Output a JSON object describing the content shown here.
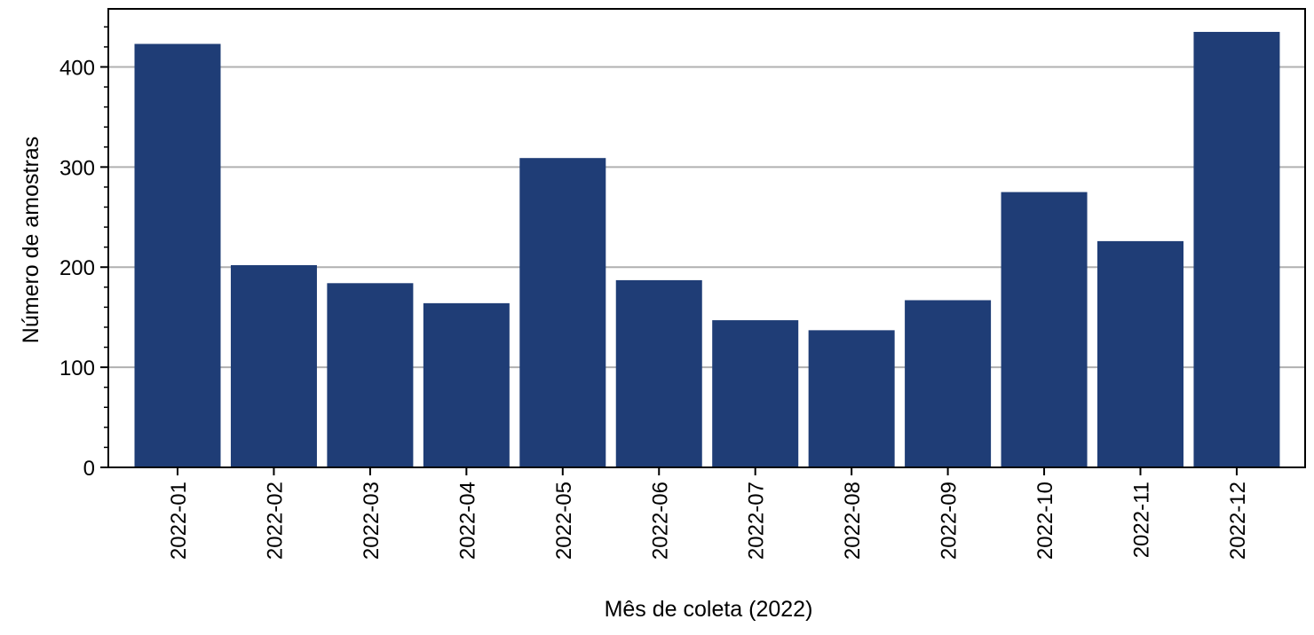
{
  "chart_data": {
    "type": "bar",
    "title": "",
    "xlabel": "Mês de coleta (2022)",
    "ylabel": "Número de amostras",
    "categories": [
      "2022-01",
      "2022-02",
      "2022-03",
      "2022-04",
      "2022-05",
      "2022-06",
      "2022-07",
      "2022-08",
      "2022-09",
      "2022-10",
      "2022-11",
      "2022-12"
    ],
    "values": [
      423,
      202,
      184,
      164,
      309,
      187,
      147,
      137,
      167,
      275,
      226,
      435
    ],
    "ylim": [
      0,
      458
    ],
    "yticks": [
      0,
      100,
      200,
      300,
      400
    ],
    "yticklabels": [
      "0",
      "100",
      "200",
      "300",
      "400"
    ],
    "grid": "horizontal",
    "bar_color": "#1f3d76",
    "grid_color": "#b0b0b0"
  }
}
